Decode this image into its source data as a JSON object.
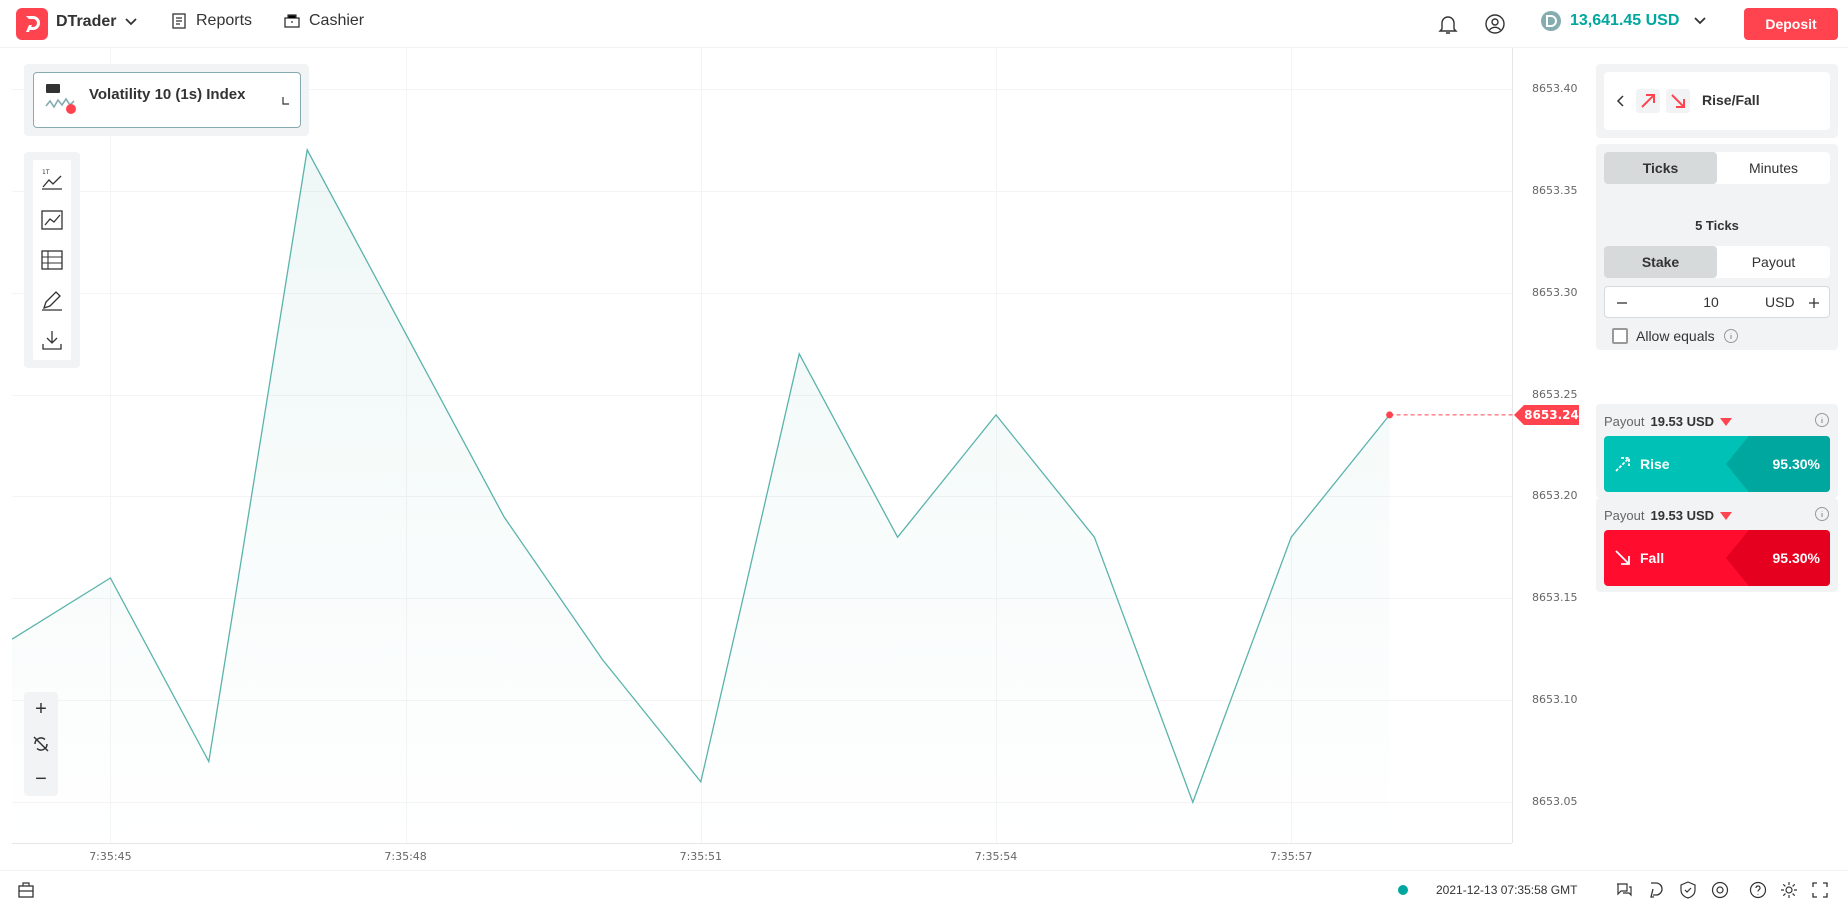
{
  "header": {
    "brand": "DTrader",
    "nav": {
      "reports": "Reports",
      "cashier": "Cashier"
    },
    "balance": "13,641.45 USD",
    "deposit_label": "Deposit"
  },
  "chart": {
    "symbol": "Volatility 10 (1s) Index",
    "current_price": "8653.24",
    "y_ticks": [
      "8653.40",
      "8653.35",
      "8653.30",
      "8653.25",
      "8653.20",
      "8653.15",
      "8653.10",
      "8653.05"
    ],
    "x_ticks": [
      "7:35:45",
      "7:35:48",
      "7:35:51",
      "7:35:54",
      "7:35:57"
    ],
    "zoom": {
      "in": "+",
      "out": "−"
    }
  },
  "chart_data": {
    "type": "line",
    "x": [
      "7:35:44",
      "7:35:45",
      "7:35:46",
      "7:35:47",
      "7:35:48",
      "7:35:49",
      "7:35:50",
      "7:35:51",
      "7:35:52",
      "7:35:53",
      "7:35:54",
      "7:35:55",
      "7:35:56",
      "7:35:57",
      "7:35:58"
    ],
    "values": [
      8653.13,
      8653.16,
      8653.07,
      8653.37,
      8653.28,
      8653.19,
      8653.12,
      8653.06,
      8653.27,
      8653.18,
      8653.24,
      8653.18,
      8653.05,
      8653.18,
      8653.24
    ],
    "ylim": [
      8653.03,
      8653.42
    ],
    "grid": true,
    "current_price_marker": 8653.24
  },
  "trade": {
    "contract_type": "Rise/Fall",
    "duration_tabs": [
      "Ticks",
      "Minutes"
    ],
    "duration_value": "5 Ticks",
    "duration_selected": 5,
    "duration_steps": 10,
    "amount_tabs": [
      "Stake",
      "Payout"
    ],
    "stake_value": "10",
    "currency": "USD",
    "allow_equals": "Allow equals",
    "rise": {
      "payout_label": "Payout",
      "payout_value": "19.53 USD",
      "label": "Rise",
      "pct": "95.30%"
    },
    "fall": {
      "payout_label": "Payout",
      "payout_value": "19.53 USD",
      "label": "Fall",
      "pct": "95.30%"
    }
  },
  "footer": {
    "time": "2021-12-13 07:35:58 GMT"
  }
}
